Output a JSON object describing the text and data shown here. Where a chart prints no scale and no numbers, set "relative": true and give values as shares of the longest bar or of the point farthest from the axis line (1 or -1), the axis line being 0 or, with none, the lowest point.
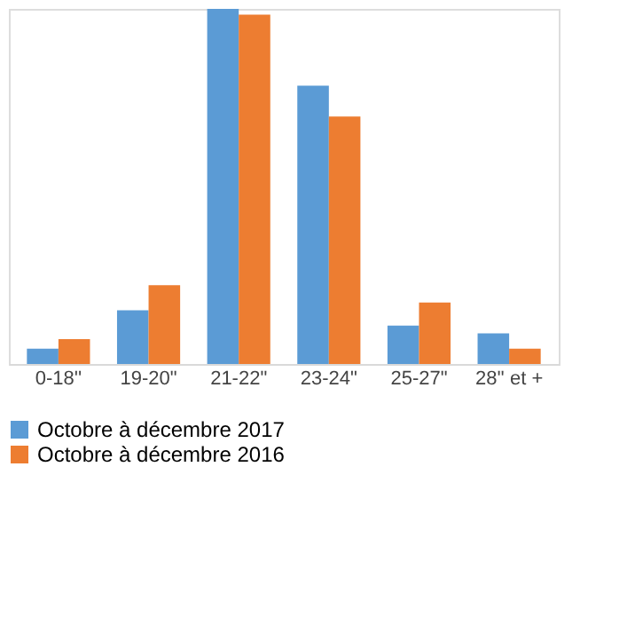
{
  "chart_data": {
    "type": "bar",
    "relative": true,
    "categories": [
      "0-18''",
      "19-20\"",
      "21-22\"",
      "23-24\"",
      "25-27\"",
      "28'' et +"
    ],
    "series": [
      {
        "name": "Octobre à décembre 2017",
        "color": "#5b9bd5",
        "values": [
          0.043,
          0.151,
          1,
          0.784,
          0.108,
          0.086
        ]
      },
      {
        "name": "Octobre à décembre 2016",
        "color": "#ed7d31",
        "values": [
          0.07,
          0.222,
          0.984,
          0.697,
          0.173,
          0.043
        ]
      }
    ],
    "legend": "bottom",
    "grid": false
  }
}
